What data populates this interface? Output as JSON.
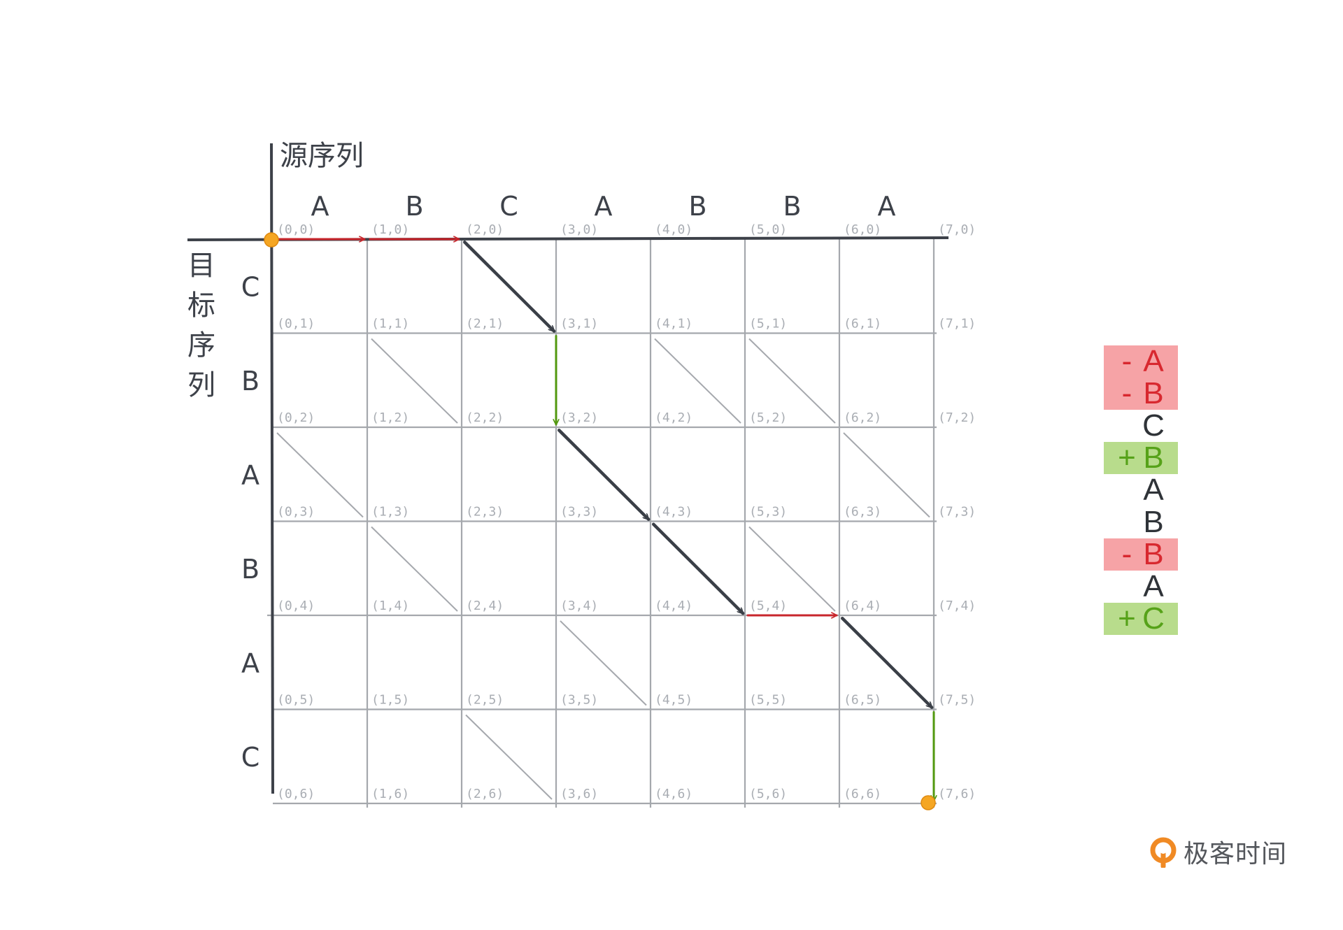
{
  "axes": {
    "source_title": "源序列",
    "target_title_chars": [
      "目",
      "标",
      "序",
      "列"
    ]
  },
  "source_sequence": [
    "A",
    "B",
    "C",
    "A",
    "B",
    "B",
    "A"
  ],
  "target_sequence": [
    "C",
    "B",
    "A",
    "B",
    "A",
    "C"
  ],
  "grid": {
    "cols": 7,
    "rows": 6
  },
  "match_diagonals": [
    [
      2,
      0
    ],
    [
      1,
      1
    ],
    [
      4,
      1
    ],
    [
      5,
      1
    ],
    [
      6,
      2
    ],
    [
      0,
      2
    ],
    [
      3,
      2
    ],
    [
      1,
      3
    ],
    [
      5,
      3
    ],
    [
      3,
      4
    ],
    [
      2,
      5
    ]
  ],
  "edit_path": [
    {
      "from": [
        0,
        0
      ],
      "to": [
        1,
        0
      ],
      "kind": "delete"
    },
    {
      "from": [
        1,
        0
      ],
      "to": [
        2,
        0
      ],
      "kind": "delete"
    },
    {
      "from": [
        2,
        0
      ],
      "to": [
        3,
        1
      ],
      "kind": "match"
    },
    {
      "from": [
        3,
        1
      ],
      "to": [
        3,
        2
      ],
      "kind": "insert"
    },
    {
      "from": [
        3,
        2
      ],
      "to": [
        4,
        3
      ],
      "kind": "match"
    },
    {
      "from": [
        4,
        3
      ],
      "to": [
        5,
        4
      ],
      "kind": "match"
    },
    {
      "from": [
        5,
        4
      ],
      "to": [
        6,
        4
      ],
      "kind": "delete"
    },
    {
      "from": [
        6,
        4
      ],
      "to": [
        7,
        5
      ],
      "kind": "match"
    },
    {
      "from": [
        7,
        5
      ],
      "to": [
        7,
        6
      ],
      "kind": "insert"
    }
  ],
  "diff_output": [
    {
      "sign": "-",
      "letter": "A",
      "kind": "del"
    },
    {
      "sign": "-",
      "letter": "B",
      "kind": "del"
    },
    {
      "sign": "",
      "letter": "C",
      "kind": "same"
    },
    {
      "sign": "+",
      "letter": "B",
      "kind": "ins"
    },
    {
      "sign": "",
      "letter": "A",
      "kind": "same"
    },
    {
      "sign": "",
      "letter": "B",
      "kind": "same"
    },
    {
      "sign": "-",
      "letter": "B",
      "kind": "del"
    },
    {
      "sign": "",
      "letter": "A",
      "kind": "same"
    },
    {
      "sign": "+",
      "letter": "C",
      "kind": "ins"
    }
  ],
  "colors": {
    "grid": "#a5a8ad",
    "axis": "#3d4149",
    "delete": "#c8262c",
    "insert": "#52980f",
    "match": "#3a3f47",
    "endpoint": "#f5a623"
  },
  "logo": {
    "text": "极客时间",
    "icon": "geektime-logo-icon"
  }
}
